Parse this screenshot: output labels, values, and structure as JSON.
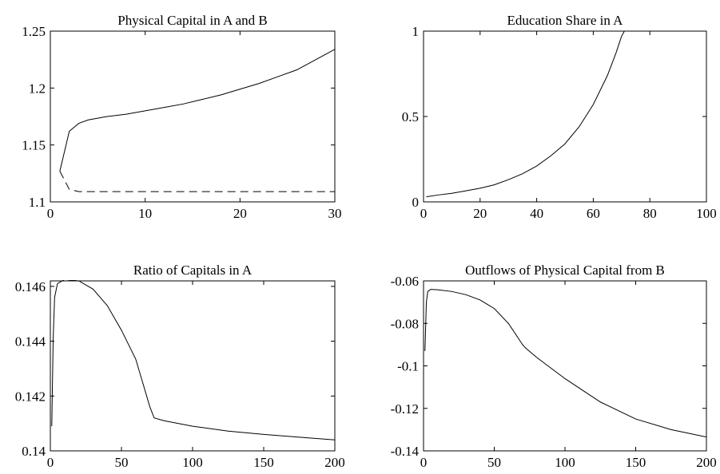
{
  "chart_data": [
    {
      "type": "line",
      "title": "Physical Capital in A and B",
      "x": [
        1,
        2,
        3,
        4,
        5,
        6,
        8,
        10,
        12,
        14,
        16,
        18,
        20,
        22,
        24,
        26,
        28,
        30
      ],
      "series": [
        {
          "color": "#000000",
          "dash": false,
          "values": [
            1.127,
            1.162,
            1.169,
            1.172,
            1.1735,
            1.175,
            1.177,
            1.18,
            1.183,
            1.186,
            1.19,
            1.194,
            1.199,
            1.204,
            1.21,
            1.216,
            1.225,
            1.234
          ]
        },
        {
          "color": "#000000",
          "dash": true,
          "values": [
            1.127,
            1.111,
            1.109,
            1.109,
            1.109,
            1.109,
            1.109,
            1.109,
            1.109,
            1.109,
            1.109,
            1.109,
            1.109,
            1.109,
            1.109,
            1.109,
            1.109,
            1.109
          ]
        }
      ],
      "xlim": [
        0,
        30
      ],
      "xticks": [
        0,
        10,
        20,
        30
      ],
      "ylim": [
        1.1,
        1.25
      ],
      "yticks": [
        1.1,
        1.15,
        1.2,
        1.25
      ]
    },
    {
      "type": "line",
      "title": "Education Share in A",
      "x": [
        1,
        5,
        10,
        15,
        20,
        25,
        30,
        35,
        40,
        45,
        50,
        55,
        60,
        65,
        68,
        70,
        71
      ],
      "series": [
        {
          "color": "#000000",
          "dash": false,
          "values": [
            0.03,
            0.04,
            0.05,
            0.065,
            0.08,
            0.1,
            0.13,
            0.165,
            0.21,
            0.27,
            0.34,
            0.44,
            0.57,
            0.74,
            0.87,
            0.97,
            1.0
          ]
        }
      ],
      "xlim": [
        0,
        100
      ],
      "xticks": [
        0,
        20,
        40,
        60,
        80,
        100
      ],
      "ylim": [
        0,
        1
      ],
      "yticks": [
        0,
        0.5,
        1
      ]
    },
    {
      "type": "line",
      "title": "Ratio of Capitals in A",
      "x": [
        1,
        2,
        3,
        5,
        10,
        20,
        30,
        40,
        50,
        60,
        70,
        73,
        80,
        100,
        125,
        150,
        175,
        200
      ],
      "series": [
        {
          "color": "#000000",
          "dash": false,
          "values": [
            0.1409,
            0.1441,
            0.1456,
            0.1461,
            0.14625,
            0.1462,
            0.1459,
            0.1453,
            0.1444,
            0.14335,
            0.1416,
            0.1412,
            0.1411,
            0.1409,
            0.14072,
            0.1406,
            0.1405,
            0.1404
          ]
        }
      ],
      "xlim": [
        0,
        200
      ],
      "xticks": [
        0,
        50,
        100,
        150,
        200
      ],
      "ylim": [
        0.14,
        0.1462
      ],
      "yticks": [
        0.14,
        0.142,
        0.144,
        0.146
      ]
    },
    {
      "type": "line",
      "title": "Outflows of Physical Capital from B",
      "x": [
        1,
        2,
        3,
        5,
        10,
        20,
        30,
        40,
        50,
        60,
        70,
        72,
        80,
        100,
        125,
        150,
        175,
        200
      ],
      "series": [
        {
          "color": "#000000",
          "dash": false,
          "values": [
            -0.093,
            -0.07,
            -0.065,
            -0.064,
            -0.0642,
            -0.065,
            -0.0665,
            -0.069,
            -0.073,
            -0.08,
            -0.09,
            -0.0915,
            -0.096,
            -0.106,
            -0.117,
            -0.125,
            -0.13,
            -0.1335
          ]
        }
      ],
      "xlim": [
        0,
        200
      ],
      "xticks": [
        0,
        50,
        100,
        150,
        200
      ],
      "ylim": [
        -0.14,
        -0.06
      ],
      "yticks": [
        -0.14,
        -0.12,
        -0.1,
        -0.08,
        -0.06
      ]
    }
  ]
}
